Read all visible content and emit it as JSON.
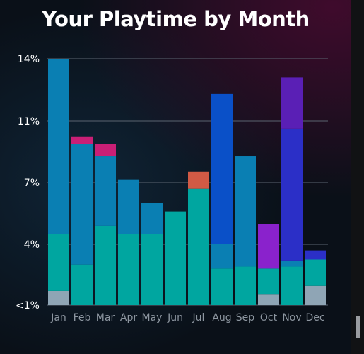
{
  "title": "Your Playtime by Month",
  "colors": {
    "background": "#0a1018",
    "grid": "#5a6470",
    "axis_label": "#ffffff",
    "month_label": "#8d96a0"
  },
  "chart_data": {
    "type": "bar",
    "stacked": true,
    "title": "Your Playtime by Month",
    "categories": [
      "Jan",
      "Feb",
      "Mar",
      "Apr",
      "May",
      "Jun",
      "Jul",
      "Aug",
      "Sep",
      "Oct",
      "Nov",
      "Dec"
    ],
    "y_ticks": [
      {
        "value": 1,
        "label": "<1%"
      },
      {
        "value": 4,
        "label": "4%"
      },
      {
        "value": 7,
        "label": "7%"
      },
      {
        "value": 11,
        "label": "11%"
      },
      {
        "value": 14,
        "label": "14%"
      }
    ],
    "ylim": [
      1,
      14
    ],
    "grid": true,
    "legend": "none",
    "stacks": [
      [
        {
          "value": 1.7,
          "color": "#8fa5b5"
        },
        {
          "value": 4.5,
          "color": "#00a6a0"
        },
        {
          "value": 14.0,
          "color": "#0a7fb3"
        }
      ],
      [
        {
          "value": 3.0,
          "color": "#00a6a0"
        },
        {
          "value": 9.5,
          "color": "#0a7fb3"
        },
        {
          "value": 10.0,
          "color": "#c91f76"
        }
      ],
      [
        {
          "value": 4.9,
          "color": "#00a6a0"
        },
        {
          "value": 8.7,
          "color": "#0a7fb3"
        },
        {
          "value": 9.5,
          "color": "#c91f76"
        }
      ],
      [
        {
          "value": 4.5,
          "color": "#00a6a0"
        },
        {
          "value": 7.2,
          "color": "#0a7fb3"
        }
      ],
      [
        {
          "value": 4.5,
          "color": "#00a6a0"
        },
        {
          "value": 6.0,
          "color": "#0a7fb3"
        }
      ],
      [
        {
          "value": 5.6,
          "color": "#00a6a0"
        }
      ],
      [
        {
          "value": 6.7,
          "color": "#00a6a0"
        },
        {
          "value": 7.7,
          "color": "#d15a45"
        }
      ],
      [
        {
          "value": 2.8,
          "color": "#00a6a0"
        },
        {
          "value": 4.0,
          "color": "#0a7fb3"
        },
        {
          "value": 12.3,
          "color": "#0a50c8"
        }
      ],
      [
        {
          "value": 2.9,
          "color": "#00a6a0"
        },
        {
          "value": 8.7,
          "color": "#0a7fb3"
        }
      ],
      [
        {
          "value": 1.55,
          "color": "#8fa5b5"
        },
        {
          "value": 2.8,
          "color": "#00a6a0"
        },
        {
          "value": 5.0,
          "color": "#8a22cc"
        }
      ],
      [
        {
          "value": 2.9,
          "color": "#00a6a0"
        },
        {
          "value": 3.2,
          "color": "#0a7fb3"
        },
        {
          "value": 10.5,
          "color": "#2b2fc7"
        },
        {
          "value": 13.1,
          "color": "#5a1fb5"
        }
      ],
      [
        {
          "value": 1.95,
          "color": "#8fa5b5"
        },
        {
          "value": 3.25,
          "color": "#00a6a0"
        },
        {
          "value": 3.7,
          "color": "#2b2fc7"
        }
      ]
    ]
  }
}
